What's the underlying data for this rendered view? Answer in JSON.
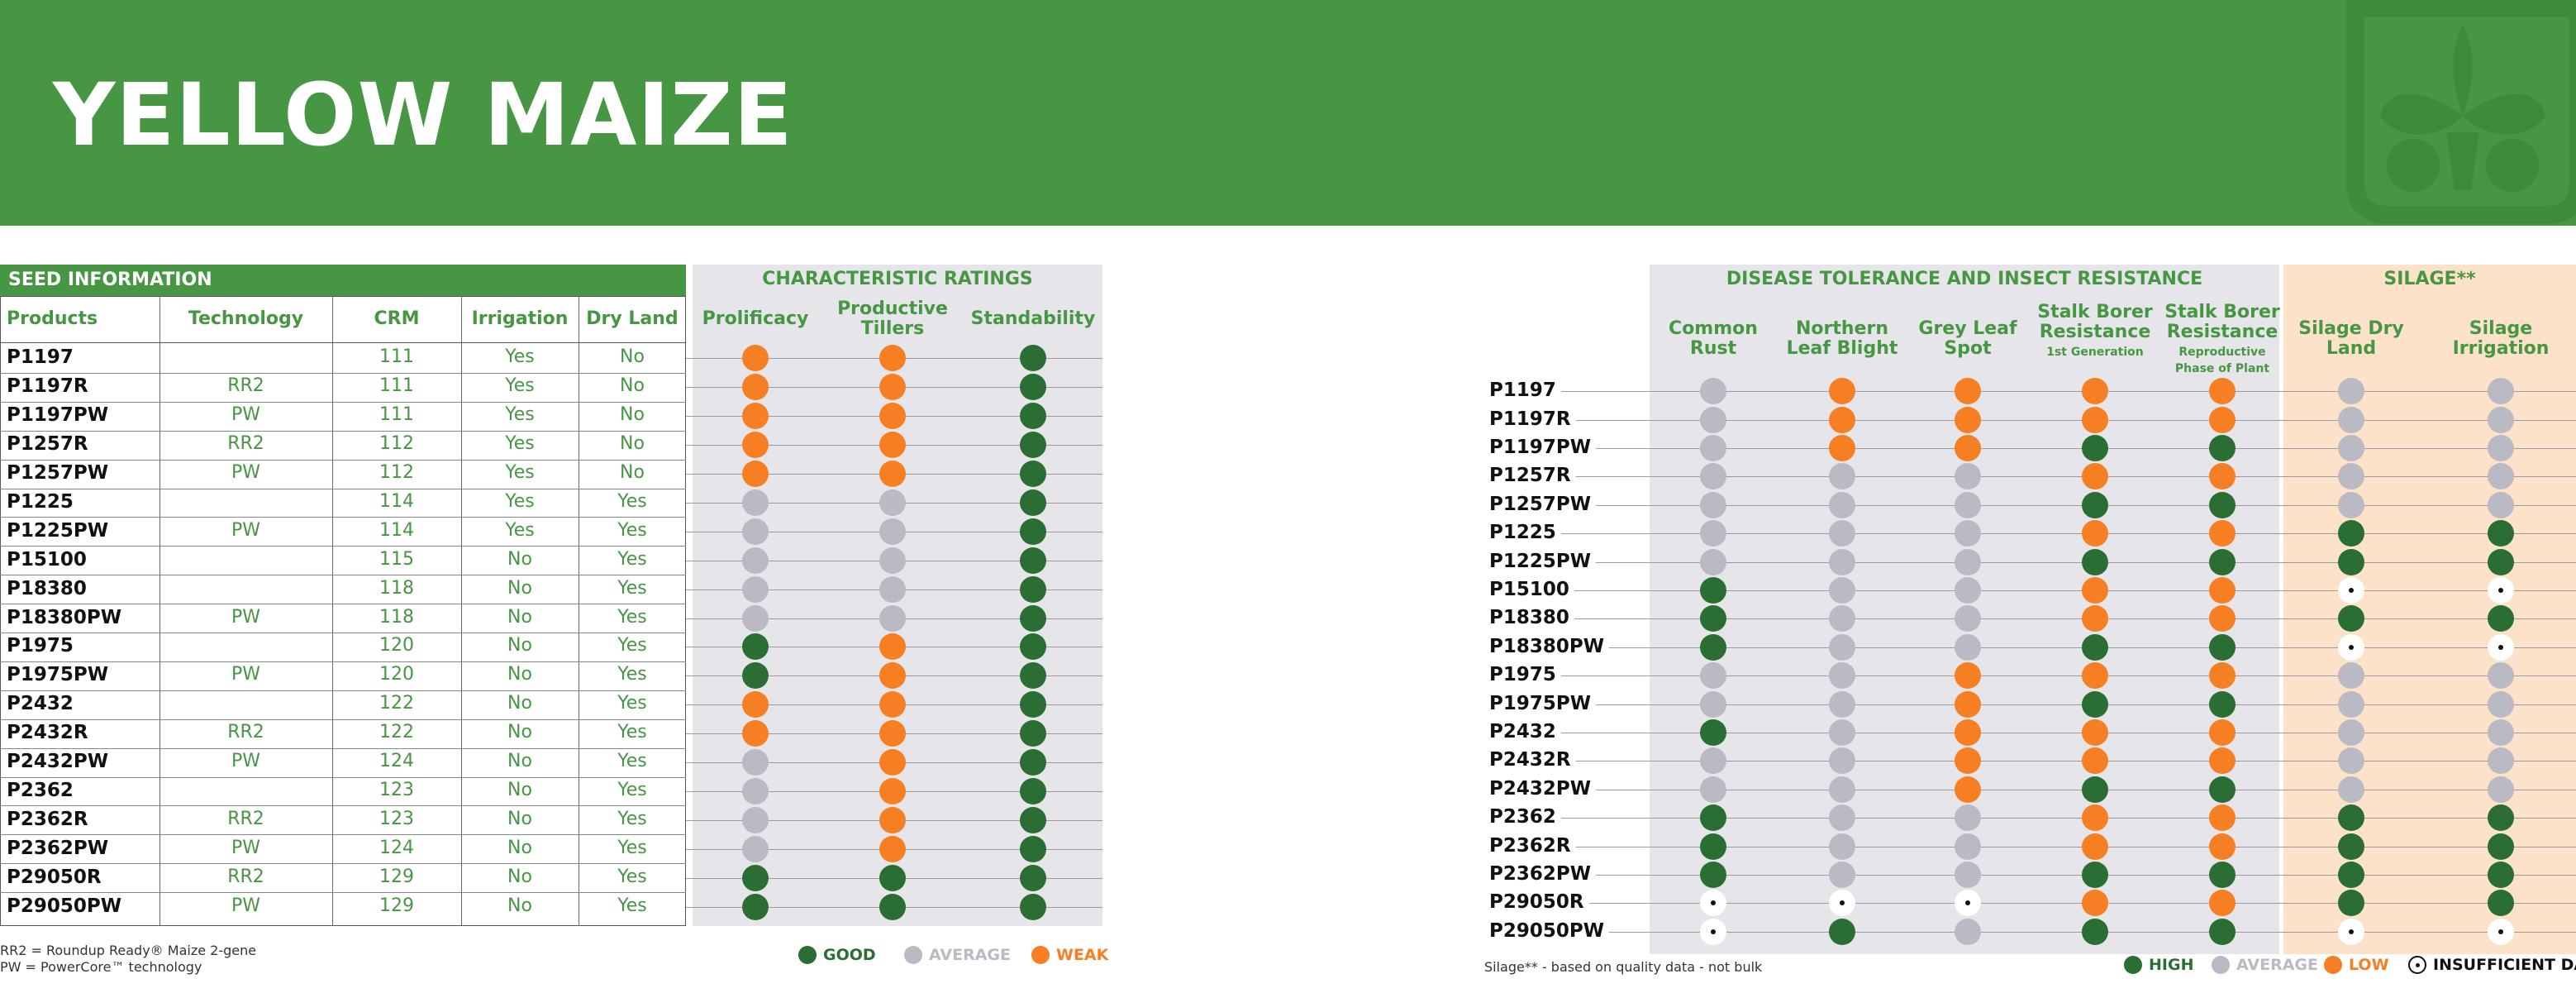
{
  "title": "YELLOW MAIZE",
  "seed_section": "SEED INFORMATION",
  "char_section": "CHARACTERISTIC RATINGS",
  "disease_section": "DISEASE TOLERANCE AND INSECT RESISTANCE",
  "silage_section": "SILAGE**",
  "left_headers": [
    "Products",
    "Technology",
    "CRM",
    "Irrigation",
    "Dry Land"
  ],
  "char_headers": [
    "Prolificacy",
    "Productive\nTillers",
    "Standability"
  ],
  "disease_headers": [
    {
      "main": "Common\nRust",
      "sub": ""
    },
    {
      "main": "Northern\nLeaf Blight",
      "sub": ""
    },
    {
      "main": "Grey Leaf\nSpot",
      "sub": ""
    },
    {
      "main": "Stalk Borer\nResistance",
      "sub": "1st Generation"
    },
    {
      "main": "Stalk Borer\nResistance",
      "sub": "Reproductive\nPhase of Plant"
    }
  ],
  "silage_headers": [
    "Silage Dry\nLand",
    "Silage\nIrrigation"
  ],
  "left_rows": [
    {
      "product": "P1197",
      "tech": "",
      "crm": "111",
      "irr": "Yes",
      "dry": "No",
      "ratings": [
        "W",
        "W",
        "G"
      ]
    },
    {
      "product": "P1197R",
      "tech": "RR2",
      "crm": "111",
      "irr": "Yes",
      "dry": "No",
      "ratings": [
        "W",
        "W",
        "G"
      ]
    },
    {
      "product": "P1197PW",
      "tech": "PW",
      "crm": "111",
      "irr": "Yes",
      "dry": "No",
      "ratings": [
        "W",
        "W",
        "G"
      ]
    },
    {
      "product": "P1257R",
      "tech": "RR2",
      "crm": "112",
      "irr": "Yes",
      "dry": "No",
      "ratings": [
        "W",
        "W",
        "G"
      ]
    },
    {
      "product": "P1257PW",
      "tech": "PW",
      "crm": "112",
      "irr": "Yes",
      "dry": "No",
      "ratings": [
        "W",
        "W",
        "G"
      ]
    },
    {
      "product": "P1225",
      "tech": "",
      "crm": "114",
      "irr": "Yes",
      "dry": "Yes",
      "ratings": [
        "A",
        "A",
        "G"
      ]
    },
    {
      "product": "P1225PW",
      "tech": "PW",
      "crm": "114",
      "irr": "Yes",
      "dry": "Yes",
      "ratings": [
        "A",
        "A",
        "G"
      ]
    },
    {
      "product": "P15100",
      "tech": "",
      "crm": "115",
      "irr": "No",
      "dry": "Yes",
      "ratings": [
        "A",
        "A",
        "G"
      ]
    },
    {
      "product": "P18380",
      "tech": "",
      "crm": "118",
      "irr": "No",
      "dry": "Yes",
      "ratings": [
        "A",
        "A",
        "G"
      ]
    },
    {
      "product": "P18380PW",
      "tech": "PW",
      "crm": "118",
      "irr": "No",
      "dry": "Yes",
      "ratings": [
        "A",
        "A",
        "G"
      ]
    },
    {
      "product": "P1975",
      "tech": "",
      "crm": "120",
      "irr": "No",
      "dry": "Yes",
      "ratings": [
        "G",
        "W",
        "G"
      ]
    },
    {
      "product": "P1975PW",
      "tech": "PW",
      "crm": "120",
      "irr": "No",
      "dry": "Yes",
      "ratings": [
        "G",
        "W",
        "G"
      ]
    },
    {
      "product": "P2432",
      "tech": "",
      "crm": "122",
      "irr": "No",
      "dry": "Yes",
      "ratings": [
        "W",
        "W",
        "G"
      ]
    },
    {
      "product": "P2432R",
      "tech": "RR2",
      "crm": "122",
      "irr": "No",
      "dry": "Yes",
      "ratings": [
        "W",
        "W",
        "G"
      ]
    },
    {
      "product": "P2432PW",
      "tech": "PW",
      "crm": "124",
      "irr": "No",
      "dry": "Yes",
      "ratings": [
        "A",
        "W",
        "G"
      ]
    },
    {
      "product": "P2362",
      "tech": "",
      "crm": "123",
      "irr": "No",
      "dry": "Yes",
      "ratings": [
        "A",
        "W",
        "G"
      ]
    },
    {
      "product": "P2362R",
      "tech": "RR2",
      "crm": "123",
      "irr": "No",
      "dry": "Yes",
      "ratings": [
        "A",
        "W",
        "G"
      ]
    },
    {
      "product": "P2362PW",
      "tech": "PW",
      "crm": "124",
      "irr": "No",
      "dry": "Yes",
      "ratings": [
        "A",
        "W",
        "G"
      ]
    },
    {
      "product": "P29050R",
      "tech": "RR2",
      "crm": "129",
      "irr": "No",
      "dry": "Yes",
      "ratings": [
        "G",
        "G",
        "G"
      ]
    },
    {
      "product": "P29050PW",
      "tech": "PW",
      "crm": "129",
      "irr": "No",
      "dry": "Yes",
      "ratings": [
        "G",
        "G",
        "G"
      ]
    }
  ],
  "right_rows": [
    {
      "product": "P1197",
      "ratings": [
        "A",
        "W",
        "W",
        "W",
        "W",
        "A",
        "A"
      ]
    },
    {
      "product": "P1197R",
      "ratings": [
        "A",
        "W",
        "W",
        "W",
        "W",
        "A",
        "A"
      ]
    },
    {
      "product": "P1197PW",
      "ratings": [
        "A",
        "W",
        "W",
        "G",
        "G",
        "A",
        "A"
      ]
    },
    {
      "product": "P1257R",
      "ratings": [
        "A",
        "A",
        "A",
        "W",
        "W",
        "A",
        "A"
      ]
    },
    {
      "product": "P1257PW",
      "ratings": [
        "A",
        "A",
        "A",
        "G",
        "G",
        "A",
        "A"
      ]
    },
    {
      "product": "P1225",
      "ratings": [
        "A",
        "A",
        "A",
        "W",
        "W",
        "G",
        "G"
      ]
    },
    {
      "product": "P1225PW",
      "ratings": [
        "A",
        "A",
        "A",
        "G",
        "G",
        "G",
        "G"
      ]
    },
    {
      "product": "P15100",
      "ratings": [
        "G",
        "A",
        "A",
        "W",
        "W",
        "I",
        "I"
      ]
    },
    {
      "product": "P18380",
      "ratings": [
        "G",
        "A",
        "A",
        "W",
        "W",
        "G",
        "G"
      ]
    },
    {
      "product": "P18380PW",
      "ratings": [
        "G",
        "A",
        "A",
        "G",
        "G",
        "I",
        "I"
      ]
    },
    {
      "product": "P1975",
      "ratings": [
        "A",
        "A",
        "W",
        "W",
        "W",
        "A",
        "A"
      ]
    },
    {
      "product": "P1975PW",
      "ratings": [
        "A",
        "A",
        "W",
        "G",
        "G",
        "A",
        "A"
      ]
    },
    {
      "product": "P2432",
      "ratings": [
        "G",
        "A",
        "W",
        "W",
        "W",
        "A",
        "A"
      ]
    },
    {
      "product": "P2432R",
      "ratings": [
        "A",
        "A",
        "W",
        "W",
        "W",
        "A",
        "A"
      ]
    },
    {
      "product": "P2432PW",
      "ratings": [
        "A",
        "A",
        "W",
        "G",
        "G",
        "A",
        "A"
      ]
    },
    {
      "product": "P2362",
      "ratings": [
        "G",
        "A",
        "A",
        "W",
        "W",
        "G",
        "G"
      ]
    },
    {
      "product": "P2362R",
      "ratings": [
        "G",
        "A",
        "A",
        "W",
        "W",
        "G",
        "G"
      ]
    },
    {
      "product": "P2362PW",
      "ratings": [
        "G",
        "A",
        "A",
        "G",
        "G",
        "G",
        "G"
      ]
    },
    {
      "product": "P29050R",
      "ratings": [
        "I",
        "I",
        "I",
        "W",
        "W",
        "G",
        "G"
      ]
    },
    {
      "product": "P29050PW",
      "ratings": [
        "I",
        "G",
        "A",
        "G",
        "G",
        "I",
        "I"
      ]
    }
  ],
  "legend_left": [
    {
      "label": "GOOD",
      "code": "G",
      "color": "#2a6e33"
    },
    {
      "label": "AVERAGE",
      "code": "A",
      "color": "#b9bac4"
    },
    {
      "label": "WEAK",
      "code": "W",
      "color": "#f57f22"
    }
  ],
  "legend_right": [
    {
      "label": "HIGH",
      "code": "G",
      "color": "#2a6e33"
    },
    {
      "label": "AVERAGE",
      "code": "A",
      "color": "#b9bac4"
    },
    {
      "label": "LOW",
      "code": "W",
      "color": "#f57f22"
    },
    {
      "label": "INSUFFICIENT DATA",
      "code": "I",
      "color": "#111111"
    }
  ],
  "footnote_rr2": "RR2 = Roundup Ready® Maize 2-gene",
  "footnote_pw": "PW = PowerCore™ technology",
  "footnote_silage": "Silage** - based on quality data - not bulk",
  "colors": {
    "brand_green": "#479643",
    "good": "#2a6e33",
    "average": "#b9bac4",
    "weak": "#f57f22",
    "silage_bg": "#fce2c8"
  },
  "logo_icon": "pioneer-plant-logo-icon"
}
